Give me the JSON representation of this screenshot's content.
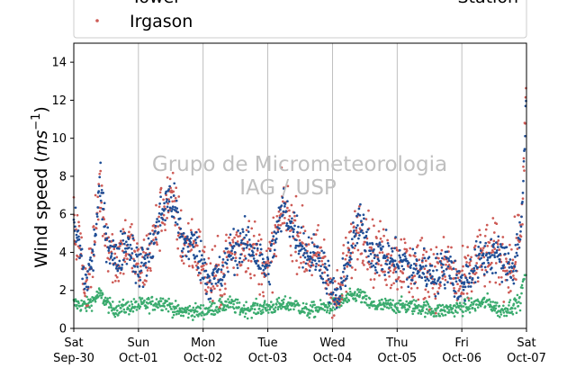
{
  "chart_data": {
    "type": "scatter",
    "title": "",
    "ylabel": "Wind speed (ms⁻¹)",
    "ylabel_parts": {
      "main": "Wind speed (",
      "unit": "ms",
      "exp": "−1",
      "close": ")"
    },
    "ylim": [
      0,
      15
    ],
    "yticks": [
      0,
      2,
      4,
      6,
      8,
      10,
      12,
      14
    ],
    "xlim": [
      "2023-09-30 00:00",
      "2023-10-07 00:00"
    ],
    "xticks": [
      {
        "weekday": "Sat",
        "date": "Sep-30"
      },
      {
        "weekday": "Sun",
        "date": "Oct-01"
      },
      {
        "weekday": "Mon",
        "date": "Oct-02"
      },
      {
        "weekday": "Tue",
        "date": "Oct-03"
      },
      {
        "weekday": "Wed",
        "date": "Oct-04"
      },
      {
        "weekday": "Thu",
        "date": "Oct-05"
      },
      {
        "weekday": "Fri",
        "date": "Oct-06"
      },
      {
        "weekday": "Sat",
        "date": "Oct-07"
      }
    ],
    "grid": "vertical",
    "legend": {
      "placement": "top",
      "entries": [
        "Tower",
        "Irgason",
        "Station"
      ]
    },
    "watermark": [
      "Grupo de Micrometeorologia",
      "IAG / USP"
    ],
    "series": [
      {
        "name": "Tower",
        "color": "#1f4e96",
        "daily_profile": [
          [
            0,
            5.5
          ],
          [
            0.08,
            4.5
          ],
          [
            0.18,
            2.3
          ],
          [
            0.3,
            3.8
          ],
          [
            0.4,
            7.5
          ],
          [
            0.5,
            5
          ],
          [
            0.65,
            3.5
          ],
          [
            0.8,
            4.5
          ],
          [
            0.9,
            4.2
          ],
          [
            1,
            3
          ],
          [
            1.1,
            3.5
          ],
          [
            1.2,
            4.2
          ],
          [
            1.35,
            6
          ],
          [
            1.45,
            6.8
          ],
          [
            1.55,
            6.5
          ],
          [
            1.68,
            4.5
          ],
          [
            1.8,
            4.5
          ],
          [
            1.9,
            4.2
          ],
          [
            2,
            3.2
          ],
          [
            2.1,
            2.5
          ],
          [
            2.3,
            2.8
          ],
          [
            2.4,
            4
          ],
          [
            2.5,
            4.2
          ],
          [
            2.7,
            4.5
          ],
          [
            2.8,
            4
          ],
          [
            2.9,
            3.5
          ],
          [
            3,
            3
          ],
          [
            3.1,
            4.5
          ],
          [
            3.25,
            6.5
          ],
          [
            3.35,
            5.5
          ],
          [
            3.45,
            5
          ],
          [
            3.6,
            4
          ],
          [
            3.75,
            3.8
          ],
          [
            3.85,
            3.5
          ],
          [
            4,
            1.8
          ],
          [
            4.1,
            1.5
          ],
          [
            4.2,
            3.2
          ],
          [
            4.3,
            4.2
          ],
          [
            4.4,
            5.5
          ],
          [
            4.5,
            5
          ],
          [
            4.62,
            4
          ],
          [
            4.8,
            3.8
          ],
          [
            5,
            3.5
          ],
          [
            5.1,
            3.5
          ],
          [
            5.2,
            3
          ],
          [
            5.35,
            3.2
          ],
          [
            5.5,
            3
          ],
          [
            5.65,
            2.8
          ],
          [
            5.8,
            3.5
          ],
          [
            5.9,
            2.5
          ],
          [
            6,
            2.2
          ],
          [
            6.1,
            2.8
          ],
          [
            6.25,
            3.5
          ],
          [
            6.4,
            3.8
          ],
          [
            6.5,
            4
          ],
          [
            6.65,
            3.5
          ],
          [
            6.8,
            3.2
          ],
          [
            6.9,
            5
          ],
          [
            6.95,
            7.5
          ],
          [
            7,
            12.5
          ]
        ]
      },
      {
        "name": "Irgason",
        "color": "#cd5a55",
        "daily_profile": [
          [
            0,
            5.5
          ],
          [
            0.08,
            4.5
          ],
          [
            0.18,
            2.3
          ],
          [
            0.3,
            3.8
          ],
          [
            0.4,
            7.5
          ],
          [
            0.5,
            5
          ],
          [
            0.65,
            3.5
          ],
          [
            0.8,
            4.5
          ],
          [
            0.9,
            4.2
          ],
          [
            1,
            3
          ],
          [
            1.1,
            3.5
          ],
          [
            1.2,
            4.2
          ],
          [
            1.35,
            6
          ],
          [
            1.45,
            6.8
          ],
          [
            1.55,
            6.5
          ],
          [
            1.68,
            4.5
          ],
          [
            1.8,
            4.5
          ],
          [
            1.9,
            4.2
          ],
          [
            2,
            3.2
          ],
          [
            2.1,
            2.5
          ],
          [
            2.3,
            2.8
          ],
          [
            2.4,
            4
          ],
          [
            2.5,
            4.2
          ],
          [
            2.7,
            4.5
          ],
          [
            2.8,
            4
          ],
          [
            2.9,
            3.5
          ],
          [
            3,
            3
          ],
          [
            3.1,
            4.5
          ],
          [
            3.25,
            6.5
          ],
          [
            3.35,
            5.5
          ],
          [
            3.45,
            5
          ],
          [
            3.6,
            4
          ],
          [
            3.75,
            3.8
          ],
          [
            3.85,
            3.5
          ],
          [
            4,
            1.8
          ],
          [
            4.1,
            1.5
          ],
          [
            4.2,
            3.2
          ],
          [
            4.3,
            4.2
          ],
          [
            4.4,
            5.5
          ],
          [
            4.5,
            5
          ],
          [
            4.62,
            4
          ],
          [
            4.8,
            3.8
          ],
          [
            5,
            3.5
          ],
          [
            5.1,
            3.5
          ],
          [
            5.2,
            3
          ],
          [
            5.35,
            3.2
          ],
          [
            5.5,
            3
          ],
          [
            5.65,
            2.8
          ],
          [
            5.8,
            3.5
          ],
          [
            5.9,
            2.5
          ],
          [
            6,
            2.2
          ],
          [
            6.1,
            2.8
          ],
          [
            6.25,
            3.5
          ],
          [
            6.4,
            3.8
          ],
          [
            6.5,
            4
          ],
          [
            6.65,
            3.5
          ],
          [
            6.8,
            3.2
          ],
          [
            6.9,
            5
          ],
          [
            6.95,
            7.5
          ],
          [
            7,
            12.5
          ]
        ]
      },
      {
        "name": "Station",
        "color": "#3aab6e",
        "typical_range": [
          0.3,
          2.5
        ],
        "daily_profile": [
          [
            0,
            1.3
          ],
          [
            0.2,
            1.2
          ],
          [
            0.4,
            1.8
          ],
          [
            0.6,
            1.0
          ],
          [
            1,
            1.2
          ],
          [
            1.4,
            1.4
          ],
          [
            1.6,
            0.9
          ],
          [
            2,
            0.9
          ],
          [
            2.4,
            1.3
          ],
          [
            2.6,
            1.0
          ],
          [
            3,
            1.1
          ],
          [
            3.4,
            1.3
          ],
          [
            3.6,
            0.9
          ],
          [
            4,
            1.2
          ],
          [
            4.4,
            1.8
          ],
          [
            4.6,
            1.2
          ],
          [
            5,
            1.2
          ],
          [
            5.4,
            1.1
          ],
          [
            5.6,
            0.9
          ],
          [
            6,
            1.1
          ],
          [
            6.4,
            1.4
          ],
          [
            6.6,
            0.9
          ],
          [
            6.9,
            1.4
          ],
          [
            7,
            3.5
          ]
        ]
      }
    ]
  }
}
